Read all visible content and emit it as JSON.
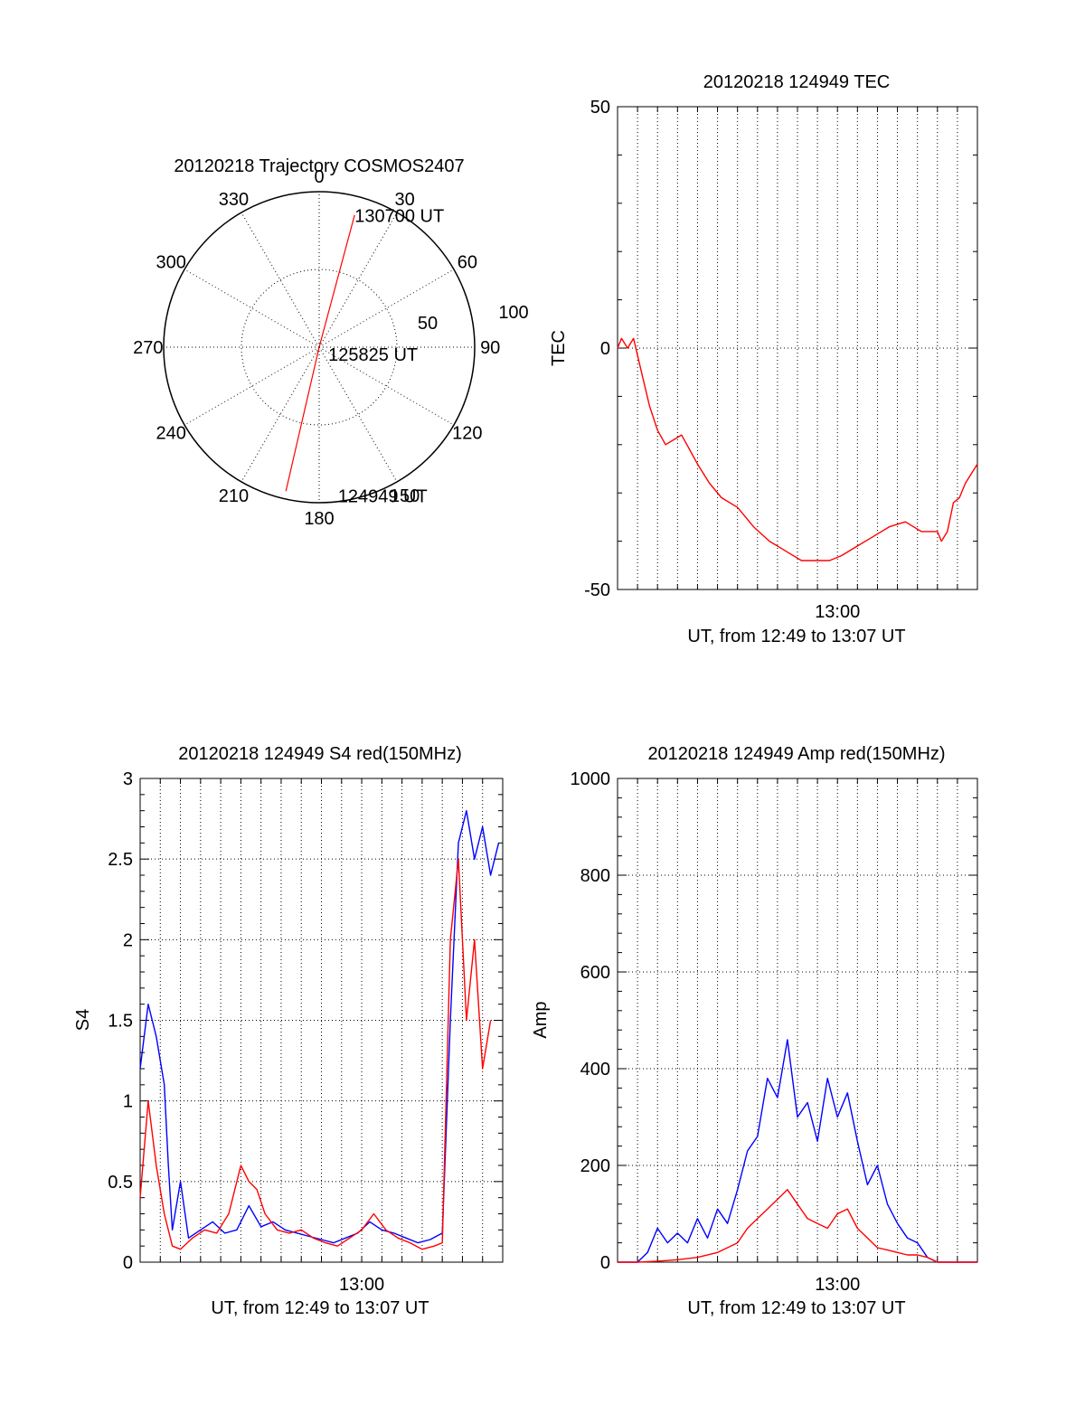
{
  "chart_data": [
    {
      "type": "polar",
      "title": "20120218 Trajectory COSMOS2407",
      "angle_labels": [
        "0",
        "30",
        "60",
        "90",
        "120",
        "150",
        "180",
        "210",
        "240",
        "270",
        "300",
        "330"
      ],
      "radius_labels": [
        "50",
        "100"
      ],
      "rlim": [
        0,
        100
      ],
      "series": [
        {
          "color": "#ff0000",
          "points": [
            {
              "azimuth": 193,
              "radius": 95
            },
            {
              "azimuth": 0,
              "radius": 0
            },
            {
              "azimuth": 15,
              "radius": 88
            }
          ]
        }
      ],
      "annotations": [
        {
          "text": "130700 UT",
          "azimuth": 22,
          "radius": 92
        },
        {
          "text": "125825 UT",
          "azimuth": 103,
          "radius": 18
        },
        {
          "text": "124949 UT",
          "azimuth": 166,
          "radius": 98
        }
      ]
    },
    {
      "type": "line",
      "title": "20120218 124949 TEC",
      "xlabel": "UT, from 12:49 to 13:07 UT",
      "ylabel": "TEC",
      "x_unit": "minutes after 12:49 UT",
      "xlim": [
        0,
        18
      ],
      "ylim": [
        -50,
        50
      ],
      "x_tick_labels": [
        {
          "x": 11,
          "label": "13:00"
        }
      ],
      "y_tick_labels": [
        "-50",
        "0",
        "50"
      ],
      "grid": "vertical dotted",
      "series": [
        {
          "color": "#ff0000",
          "x": [
            0,
            0.2,
            0.5,
            0.8,
            1.2,
            1.6,
            2.0,
            2.4,
            2.8,
            3.2,
            3.6,
            4.0,
            4.6,
            5.2,
            6.0,
            6.8,
            7.6,
            8.4,
            9.2,
            10.0,
            10.6,
            11.2,
            12.0,
            12.8,
            13.6,
            14.4,
            15.2,
            16.0,
            16.2,
            16.5,
            16.8,
            17.1,
            17.4,
            17.7,
            18.0
          ],
          "y": [
            0,
            2,
            0,
            2,
            -5,
            -12,
            -17,
            -20,
            -19,
            -18,
            -21,
            -24,
            -28,
            -31,
            -33,
            -37,
            -40,
            -42,
            -44,
            -44,
            -44,
            -43,
            -41,
            -39,
            -37,
            -36,
            -38,
            -38,
            -40,
            -38,
            -32,
            -31,
            -28,
            -26,
            -24
          ]
        }
      ]
    },
    {
      "type": "line",
      "title": "20120218 124949 S4 red(150MHz)",
      "xlabel": "UT, from 12:49 to 13:07 UT",
      "ylabel": "S4",
      "xlim": [
        0,
        18
      ],
      "ylim": [
        0,
        3
      ],
      "x_tick_labels": [
        {
          "x": 11,
          "label": "13:00"
        }
      ],
      "y_tick_labels": [
        "0",
        "0.5",
        "1",
        "1.5",
        "2",
        "2.5",
        "3"
      ],
      "grid": "dotted",
      "series": [
        {
          "color": "#0000ff",
          "x": [
            0,
            0.4,
            0.8,
            1.2,
            1.4,
            1.6,
            2.0,
            2.4,
            3.0,
            3.6,
            4.2,
            4.8,
            5.4,
            6.0,
            6.6,
            7.2,
            7.8,
            8.4,
            9.0,
            9.6,
            10.2,
            10.8,
            11.4,
            12.0,
            12.6,
            13.2,
            13.8,
            14.4,
            15.0,
            15.4,
            15.8,
            16.2,
            16.6,
            17.0,
            17.4,
            17.8
          ],
          "y": [
            1.2,
            1.6,
            1.4,
            1.1,
            0.6,
            0.2,
            0.5,
            0.15,
            0.2,
            0.25,
            0.18,
            0.2,
            0.35,
            0.22,
            0.25,
            0.2,
            0.18,
            0.16,
            0.14,
            0.12,
            0.15,
            0.18,
            0.25,
            0.2,
            0.18,
            0.15,
            0.12,
            0.14,
            0.18,
            1.5,
            2.6,
            2.8,
            2.5,
            2.7,
            2.4,
            2.6
          ]
        },
        {
          "color": "#ff0000",
          "x": [
            0,
            0.4,
            0.8,
            1.2,
            1.6,
            2.0,
            2.6,
            3.2,
            3.8,
            4.4,
            5.0,
            5.4,
            5.8,
            6.2,
            6.8,
            7.4,
            8.0,
            8.6,
            9.2,
            9.8,
            10.4,
            11.0,
            11.6,
            12.2,
            12.8,
            13.4,
            14.0,
            14.6,
            15.0,
            15.4,
            15.8,
            16.2,
            16.6,
            17.0,
            17.4
          ],
          "y": [
            0.4,
            1.0,
            0.6,
            0.3,
            0.1,
            0.08,
            0.15,
            0.2,
            0.18,
            0.3,
            0.6,
            0.5,
            0.45,
            0.3,
            0.2,
            0.18,
            0.2,
            0.15,
            0.12,
            0.1,
            0.15,
            0.2,
            0.3,
            0.2,
            0.15,
            0.12,
            0.08,
            0.1,
            0.12,
            2.0,
            2.5,
            1.5,
            2.0,
            1.2,
            1.5
          ]
        }
      ]
    },
    {
      "type": "line",
      "title": "20120218 124949 Amp red(150MHz)",
      "xlabel": "UT, from 12:49 to 13:07 UT",
      "ylabel": "Amp",
      "xlim": [
        0,
        18
      ],
      "ylim": [
        0,
        1000
      ],
      "x_tick_labels": [
        {
          "x": 11,
          "label": "13:00"
        }
      ],
      "y_tick_labels": [
        "0",
        "200",
        "400",
        "600",
        "800",
        "1000"
      ],
      "grid": "dotted",
      "series": [
        {
          "color": "#0000ff",
          "x": [
            0,
            1.0,
            1.5,
            2.0,
            2.5,
            3.0,
            3.5,
            4.0,
            4.5,
            5.0,
            5.5,
            6.0,
            6.5,
            7.0,
            7.5,
            8.0,
            8.5,
            9.0,
            9.5,
            10.0,
            10.5,
            11.0,
            11.5,
            12.0,
            12.5,
            13.0,
            13.5,
            14.0,
            14.5,
            15.0,
            15.5,
            16.0,
            18.0
          ],
          "y": [
            0,
            0,
            20,
            70,
            40,
            60,
            40,
            90,
            50,
            110,
            80,
            150,
            230,
            260,
            380,
            340,
            460,
            300,
            330,
            250,
            380,
            300,
            350,
            250,
            160,
            200,
            120,
            80,
            50,
            40,
            10,
            0,
            0
          ]
        },
        {
          "color": "#ff0000",
          "x": [
            0,
            1.0,
            2.0,
            3.0,
            4.0,
            5.0,
            5.5,
            6.0,
            6.5,
            7.0,
            7.5,
            8.0,
            8.5,
            9.0,
            9.5,
            10.0,
            10.5,
            11.0,
            11.5,
            12.0,
            12.5,
            13.0,
            13.5,
            14.0,
            14.5,
            15.0,
            15.5,
            16.0,
            18.0
          ],
          "y": [
            0,
            0,
            2,
            5,
            10,
            20,
            30,
            40,
            70,
            90,
            110,
            130,
            150,
            120,
            90,
            80,
            70,
            100,
            110,
            70,
            50,
            30,
            25,
            20,
            15,
            15,
            10,
            0,
            0
          ]
        }
      ]
    }
  ]
}
